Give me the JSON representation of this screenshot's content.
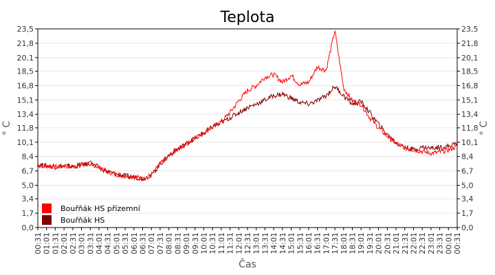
{
  "chart_data": {
    "type": "line",
    "title": "Teplota",
    "xlabel": "Čas",
    "ylabel": "° C",
    "ylim": [
      0,
      23.5
    ],
    "y_ticks": [
      "0,0",
      "1,7",
      "3,4",
      "5,0",
      "6,7",
      "8,4",
      "10,1",
      "11,8",
      "13,4",
      "15,1",
      "16,8",
      "18,5",
      "20,1",
      "21,8",
      "23,5"
    ],
    "x_ticks": [
      "00:31",
      "01:01",
      "01:31",
      "02:01",
      "02:31",
      "03:01",
      "03:31",
      "04:01",
      "04:31",
      "05:01",
      "05:31",
      "06:01",
      "06:31",
      "07:01",
      "07:31",
      "08:01",
      "08:31",
      "09:01",
      "09:31",
      "10:01",
      "10:31",
      "11:01",
      "11:31",
      "12:01",
      "12:31",
      "13:01",
      "13:31",
      "14:01",
      "14:31",
      "15:01",
      "15:31",
      "16:01",
      "16:31",
      "17:01",
      "17:31",
      "18:01",
      "18:31",
      "19:01",
      "19:31",
      "20:01",
      "20:31",
      "21:01",
      "21:31",
      "22:01",
      "22:31",
      "23:01",
      "23:31",
      "00:01",
      "00:31"
    ],
    "x_hours": [
      0,
      0.5,
      1,
      1.5,
      2,
      2.5,
      3,
      3.5,
      4,
      4.5,
      5,
      5.5,
      6,
      6.5,
      7,
      7.5,
      8,
      8.5,
      9,
      9.5,
      10,
      10.5,
      11,
      11.5,
      12,
      12.5,
      13,
      13.5,
      14,
      14.5,
      15,
      15.5,
      16,
      16.5,
      17,
      17.5,
      18,
      18.5,
      19,
      19.5,
      20,
      20.5,
      21,
      21.5,
      22,
      22.5,
      23,
      23.5,
      24
    ],
    "legend_position": "bottom-left",
    "grid": true,
    "series": [
      {
        "name": "Bouřňák HS přízemní",
        "color": "#ff0000",
        "x": [
          0,
          0.5,
          1,
          1.5,
          2,
          2.5,
          3,
          3.5,
          4,
          4.5,
          5,
          5.5,
          6,
          6.5,
          7,
          7.5,
          8,
          8.5,
          9,
          9.5,
          10,
          10.5,
          11,
          11.5,
          12,
          12.5,
          13,
          13.5,
          14,
          14.5,
          15,
          15.5,
          16,
          16.5,
          17,
          17.5,
          18,
          18.5,
          19,
          19.5,
          20,
          20.5,
          21,
          21.5,
          22,
          22.5,
          23,
          23.5,
          24
        ],
        "y": [
          7.4,
          7.3,
          7.2,
          7.3,
          7.2,
          7.4,
          7.6,
          7.1,
          6.6,
          6.3,
          6.1,
          6.0,
          5.8,
          6.2,
          7.5,
          8.5,
          9.3,
          9.9,
          10.6,
          11.2,
          11.9,
          12.5,
          13.6,
          15.0,
          16.2,
          16.8,
          17.8,
          18.1,
          17.2,
          18.0,
          16.9,
          17.2,
          19.0,
          18.6,
          23.3,
          16.5,
          15.0,
          14.6,
          13.0,
          11.8,
          10.8,
          10.0,
          9.4,
          9.2,
          9.0,
          8.8,
          8.9,
          9.2,
          9.6
        ]
      },
      {
        "name": "Bouřňák HS",
        "color": "#800000",
        "x": [
          0,
          0.5,
          1,
          1.5,
          2,
          2.5,
          3,
          3.5,
          4,
          4.5,
          5,
          5.5,
          6,
          6.5,
          7,
          7.5,
          8,
          8.5,
          9,
          9.5,
          10,
          10.5,
          11,
          11.5,
          12,
          12.5,
          13,
          13.5,
          14,
          14.5,
          15,
          15.5,
          16,
          16.5,
          17,
          17.5,
          18,
          18.5,
          19,
          19.5,
          20,
          20.5,
          21,
          21.5,
          22,
          22.5,
          23,
          23.5,
          24
        ],
        "y": [
          7.4,
          7.3,
          7.2,
          7.3,
          7.2,
          7.4,
          7.6,
          7.1,
          6.6,
          6.3,
          6.1,
          6.0,
          5.8,
          6.2,
          7.5,
          8.5,
          9.3,
          9.9,
          10.6,
          11.2,
          11.9,
          12.4,
          13.0,
          13.6,
          14.2,
          14.6,
          15.1,
          15.6,
          15.8,
          15.3,
          14.8,
          14.6,
          15.0,
          15.6,
          16.7,
          15.6,
          14.6,
          14.9,
          13.6,
          12.2,
          11.0,
          10.0,
          9.5,
          9.2,
          9.5,
          9.4,
          9.5,
          9.6,
          10.0
        ]
      }
    ]
  }
}
